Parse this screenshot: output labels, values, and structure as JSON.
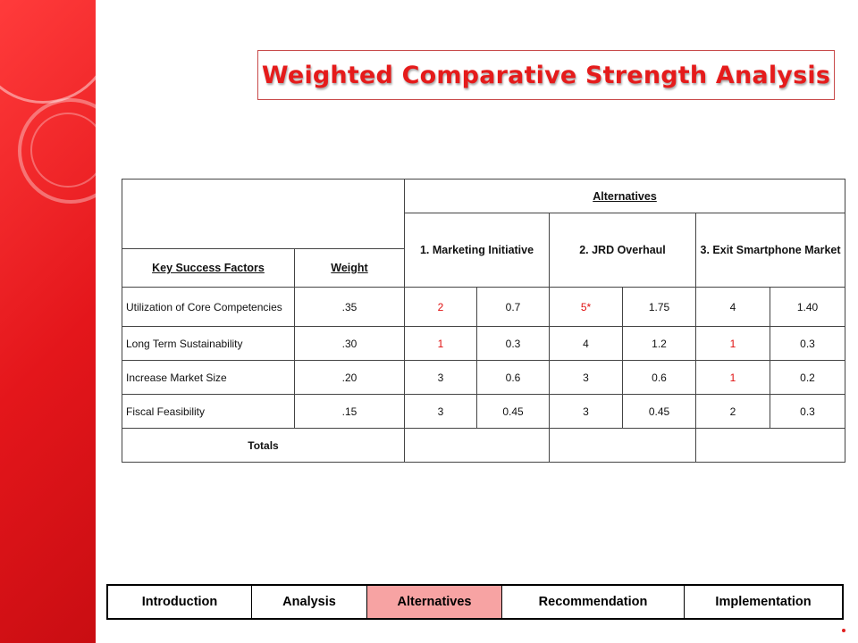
{
  "title": "Weighted Comparative Strength Analysis",
  "colors": {
    "accent": "#e51b1b",
    "sidebar": "#e4161b",
    "active_tab": "#f7a3a3"
  },
  "table": {
    "alternatives_header": "Alternatives",
    "options": [
      "1. Marketing Initiative",
      "2.  JRD Overhaul",
      "3.  Exit Smartphone Market"
    ],
    "ksf_header": "Key Success Factors",
    "weight_header": "Weight",
    "rows": [
      {
        "factor": "Utilization of Core Competencies",
        "weight": ".35",
        "s1": "2",
        "w1": "0.7",
        "s2": "5*",
        "w2": "1.75",
        "s3": "4",
        "w3": "1.40"
      },
      {
        "factor": "Long Term Sustainability",
        "weight": ".30",
        "s1": "1",
        "w1": "0.3",
        "s2": "4",
        "w2": "1.2",
        "s3": "1",
        "w3": "0.3"
      },
      {
        "factor": "Increase Market Size",
        "weight": ".20",
        "s1": "3",
        "w1": "0.6",
        "s2": "3",
        "w2": "0.6",
        "s3": "1",
        "w3": "0.2"
      },
      {
        "factor": "Fiscal Feasibility",
        "weight": ".15",
        "s1": "3",
        "w1": "0.45",
        "s2": "3",
        "w2": "0.45",
        "s3": "2",
        "w3": "0.3"
      }
    ],
    "totals_label": "Totals"
  },
  "nav": {
    "items": [
      {
        "label": "Introduction"
      },
      {
        "label": "Analysis"
      },
      {
        "label": "Alternatives"
      },
      {
        "label": "Recommendation"
      },
      {
        "label": "Implementation"
      }
    ],
    "active": "Alternatives"
  }
}
